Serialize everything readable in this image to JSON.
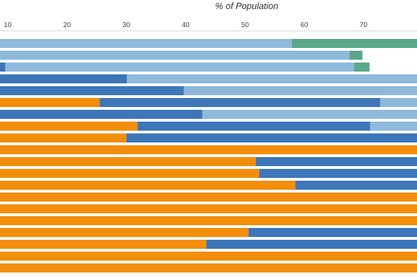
{
  "chart_data": {
    "type": "bar",
    "orientation": "horizontal",
    "stacked": true,
    "title": "",
    "xlabel": "% of Population",
    "ylabel": "",
    "xlim": [
      8.7,
      79
    ],
    "x_ticks": [
      10,
      20,
      30,
      40,
      50,
      60,
      70
    ],
    "grid": false,
    "legend": "none",
    "series_colors": [
      "#f28e0b",
      "#3d77b9",
      "#8fb9db",
      "#5aa78a"
    ],
    "rows": [
      [
        0,
        1.3,
        56.6,
        30.1
      ],
      [
        0,
        8.4,
        59.2,
        2.2
      ],
      [
        0,
        9.6,
        58.8,
        2.6
      ],
      [
        6.3,
        23.8,
        69.9,
        0
      ],
      [
        6.6,
        33.1,
        60.3,
        0
      ],
      [
        25.5,
        47.3,
        27.2,
        0
      ],
      [
        3.0,
        39.8,
        57.2,
        0
      ],
      [
        31.9,
        39.2,
        28.9,
        0
      ],
      [
        30.0,
        60.0,
        10.0,
        0
      ],
      [
        86.0,
        4.0,
        10.0,
        0
      ],
      [
        51.8,
        48.2,
        0,
        0
      ],
      [
        52.4,
        47.6,
        0,
        0
      ],
      [
        58.5,
        41.5,
        0,
        0
      ],
      [
        100,
        0,
        0,
        0
      ],
      [
        100,
        0,
        0,
        0
      ],
      [
        82.3,
        17.7,
        0,
        0
      ],
      [
        50.6,
        49.4,
        0,
        0
      ],
      [
        43.5,
        56.5,
        0,
        0
      ],
      [
        81.4,
        18.6,
        0,
        0
      ],
      [
        100,
        0,
        0,
        0
      ]
    ]
  }
}
